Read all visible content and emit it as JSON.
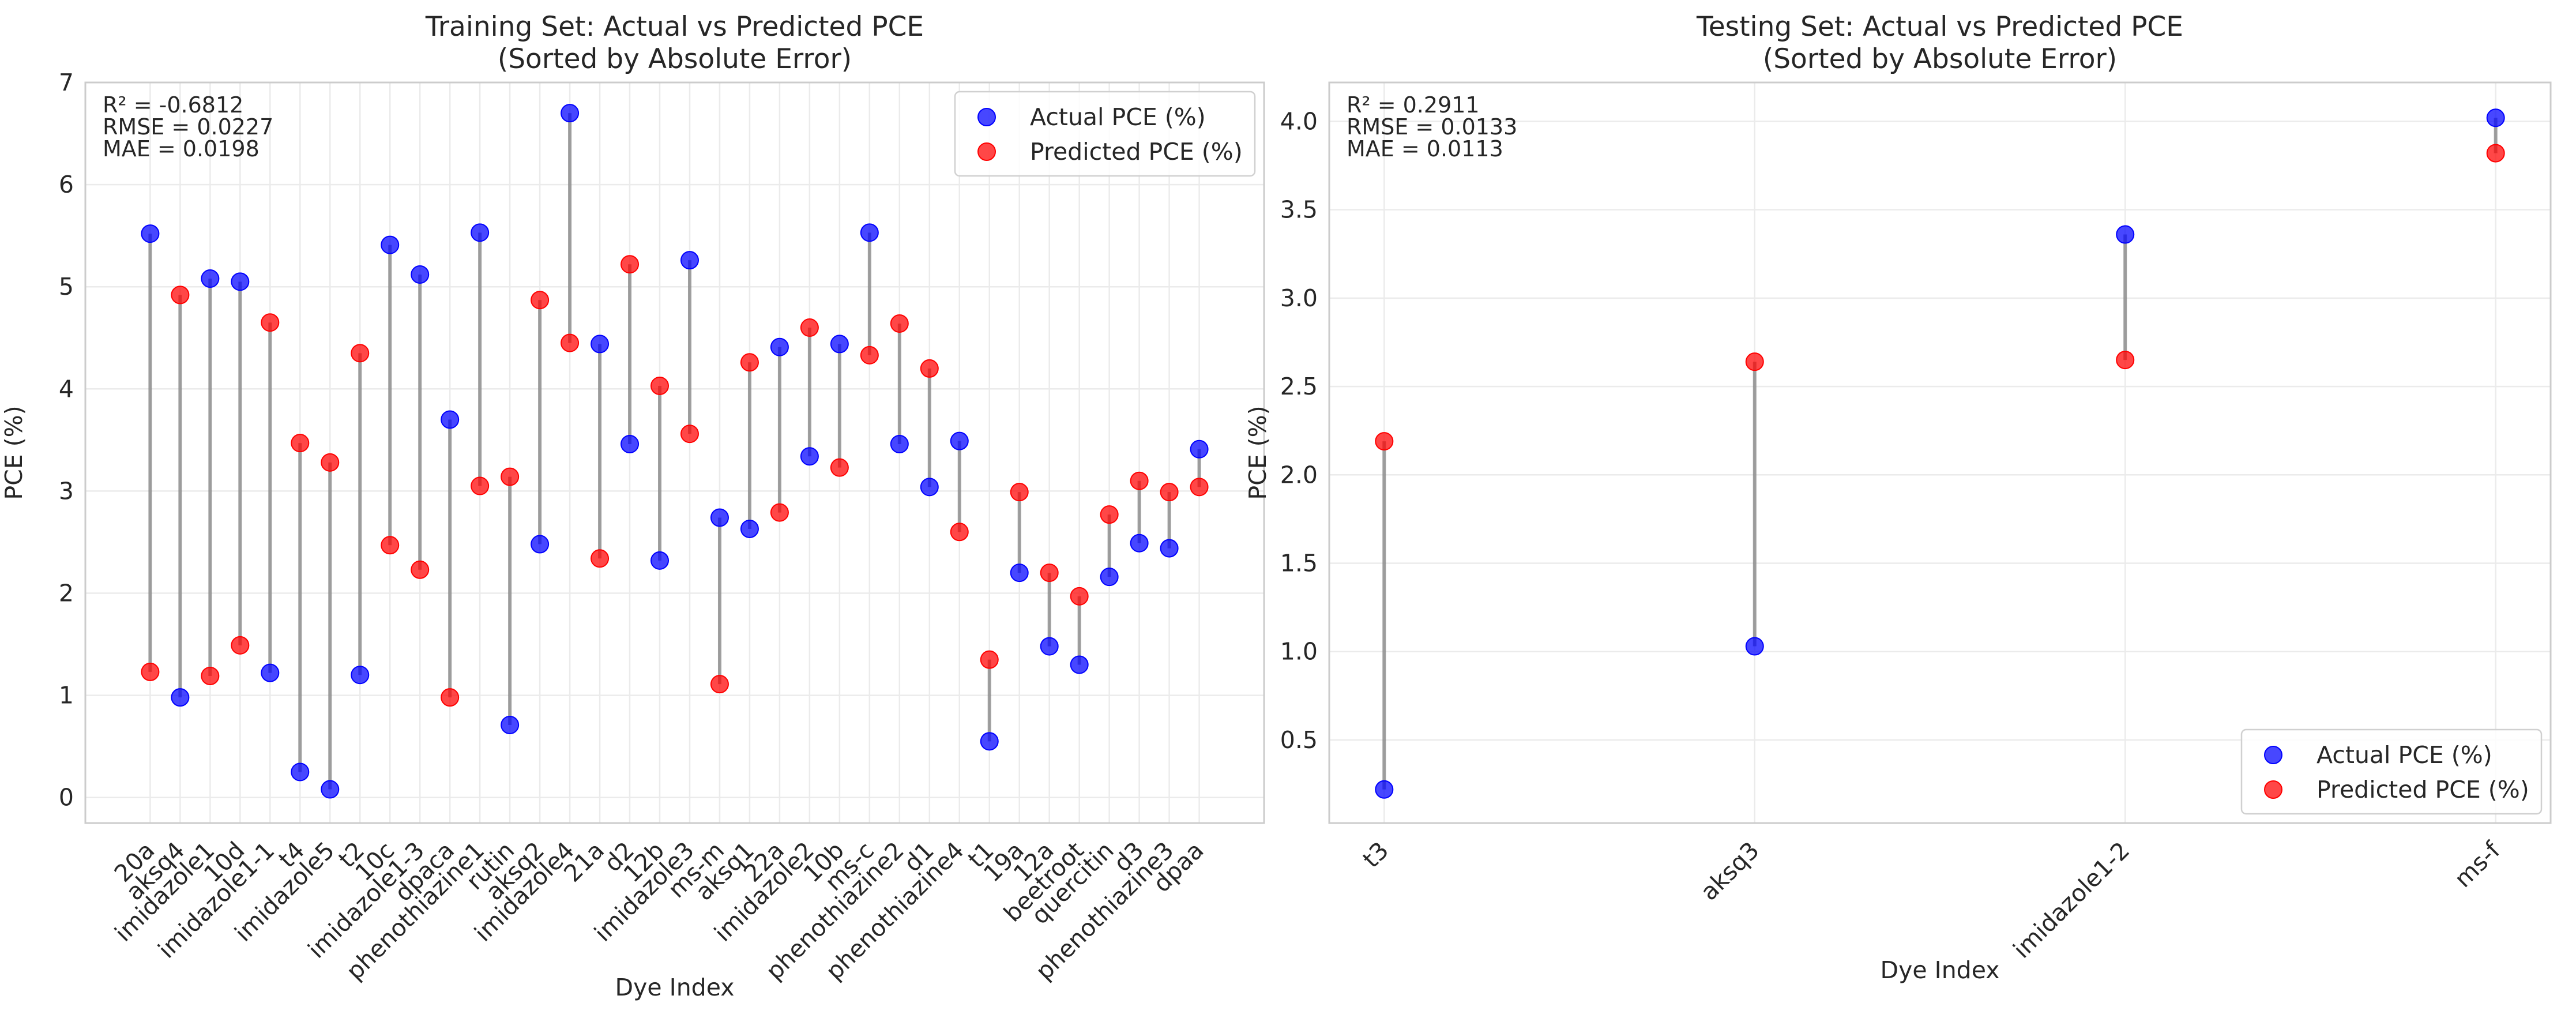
{
  "chart_data": [
    {
      "type": "scatter",
      "title_lines": [
        "Training Set: Actual vs Predicted PCE",
        "(Sorted by Absolute Error)"
      ],
      "xlabel": "Dye Index",
      "ylabel": "PCE (%)",
      "ylim": [
        -0.25,
        7.0
      ],
      "yticks": [
        0,
        1,
        2,
        3,
        4,
        5,
        6,
        7
      ],
      "grid": true,
      "legend_position": "top-right",
      "stats": [
        "R² = -0.6812",
        "RMSE = 0.0227",
        "MAE = 0.0198"
      ],
      "categories": [
        "20a",
        "aksq4",
        "imidazole1",
        "10d",
        "imidazole1-1",
        "t4",
        "imidazole5",
        "t2",
        "10c",
        "imidazole1-3",
        "dpaca",
        "phenothiazine1",
        "rutin",
        "aksq2",
        "imidazole4",
        "21a",
        "d2",
        "12b",
        "imidazole3",
        "ms-m",
        "aksq1",
        "22a",
        "imidazole2",
        "10b",
        "ms-c",
        "phenothiazine2",
        "d1",
        "phenothiazine4",
        "t1",
        "19a",
        "12a",
        "beetroot",
        "quercitin",
        "d3",
        "phenothiazine3",
        "dpaa"
      ],
      "series": [
        {
          "name": "Actual PCE (%)",
          "color": "#0000ff",
          "values": [
            5.52,
            0.98,
            5.08,
            5.05,
            1.22,
            0.25,
            0.08,
            1.2,
            5.41,
            5.12,
            3.7,
            5.53,
            0.71,
            2.48,
            6.7,
            4.44,
            3.46,
            2.32,
            5.26,
            2.74,
            2.63,
            4.41,
            3.34,
            4.44,
            5.53,
            3.46,
            3.04,
            3.49,
            0.55,
            2.2,
            1.48,
            1.3,
            2.16,
            2.49,
            2.44,
            3.41
          ]
        },
        {
          "name": "Predicted PCE (%)",
          "color": "#ff0000",
          "values": [
            1.23,
            4.92,
            1.19,
            1.49,
            4.65,
            3.47,
            3.28,
            4.35,
            2.47,
            2.23,
            0.98,
            3.05,
            3.14,
            4.87,
            4.45,
            2.34,
            5.22,
            4.03,
            3.56,
            1.11,
            4.26,
            2.79,
            4.6,
            3.23,
            4.33,
            4.64,
            4.2,
            2.6,
            1.35,
            2.99,
            2.2,
            1.97,
            2.77,
            3.1,
            2.99,
            3.04
          ]
        }
      ]
    },
    {
      "type": "scatter",
      "title_lines": [
        "Testing Set: Actual vs Predicted PCE",
        "(Sorted by Absolute Error)"
      ],
      "xlabel": "Dye Index",
      "ylabel": "PCE (%)",
      "ylim": [
        0.03,
        4.22
      ],
      "yticks": [
        0.5,
        1.0,
        1.5,
        2.0,
        2.5,
        3.0,
        3.5,
        4.0
      ],
      "grid": true,
      "legend_position": "bottom-right",
      "stats": [
        "R² = 0.2911",
        "RMSE = 0.0133",
        "MAE = 0.0113"
      ],
      "categories": [
        "t3",
        "aksq3",
        "imidazole1-2",
        "ms-f"
      ],
      "series": [
        {
          "name": "Actual PCE (%)",
          "color": "#0000ff",
          "values": [
            0.22,
            1.03,
            3.36,
            4.02
          ]
        },
        {
          "name": "Predicted PCE (%)",
          "color": "#ff0000",
          "values": [
            2.19,
            2.64,
            2.65,
            3.82
          ]
        }
      ]
    }
  ]
}
